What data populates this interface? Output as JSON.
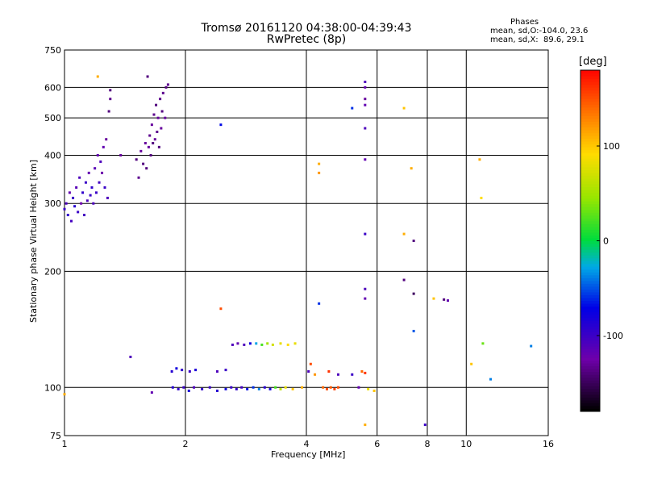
{
  "header": {
    "title_line1": "Tromsø 20161120 04:38:00-04:39:43",
    "title_line2": "RwPretec (8p)",
    "stats_title": "Phases",
    "stats_o": "mean, sd,O:-104.0, 23.6",
    "stats_x": "mean, sd,X:  89.6, 29.1"
  },
  "colorbar": {
    "label": "[deg]",
    "ticks": [
      "100",
      "0",
      "-100"
    ],
    "tick_values": [
      100,
      0,
      -100
    ],
    "range": [
      -180,
      180
    ]
  },
  "chart_data": {
    "type": "scatter",
    "xlabel": "Frequency [MHz]",
    "ylabel": "Stationary phase Virtual Height [km]",
    "xscale": "log",
    "yscale": "log",
    "xlim": [
      1,
      16
    ],
    "ylim": [
      75,
      750
    ],
    "xticks": [
      1,
      2,
      4,
      6,
      8,
      10,
      16
    ],
    "xtick_labels": [
      "1",
      "2",
      "4",
      "6",
      "8",
      "10",
      "16"
    ],
    "yticks": [
      75,
      100,
      200,
      300,
      400,
      500,
      600,
      750
    ],
    "ytick_labels": [
      "75",
      "100",
      "200",
      "300",
      "400",
      "500",
      "600",
      "750"
    ],
    "grid": true,
    "color_encoding": "phase [deg]",
    "points": [
      {
        "x": 1.0,
        "y": 290,
        "phase": -100
      },
      {
        "x": 1.01,
        "y": 300,
        "phase": -110
      },
      {
        "x": 1.02,
        "y": 280,
        "phase": -95
      },
      {
        "x": 1.03,
        "y": 320,
        "phase": -120
      },
      {
        "x": 1.04,
        "y": 270,
        "phase": -105
      },
      {
        "x": 1.05,
        "y": 310,
        "phase": -100
      },
      {
        "x": 1.06,
        "y": 295,
        "phase": -90
      },
      {
        "x": 1.07,
        "y": 330,
        "phase": -115
      },
      {
        "x": 1.08,
        "y": 285,
        "phase": -100
      },
      {
        "x": 1.09,
        "y": 350,
        "phase": -110
      },
      {
        "x": 1.1,
        "y": 300,
        "phase": -125
      },
      {
        "x": 1.11,
        "y": 320,
        "phase": -95
      },
      {
        "x": 1.12,
        "y": 280,
        "phase": -105
      },
      {
        "x": 1.13,
        "y": 340,
        "phase": -100
      },
      {
        "x": 1.14,
        "y": 305,
        "phase": -110
      },
      {
        "x": 1.15,
        "y": 360,
        "phase": -120
      },
      {
        "x": 1.16,
        "y": 315,
        "phase": -100
      },
      {
        "x": 1.17,
        "y": 330,
        "phase": -95
      },
      {
        "x": 1.18,
        "y": 300,
        "phase": -110
      },
      {
        "x": 1.19,
        "y": 370,
        "phase": -115
      },
      {
        "x": 1.2,
        "y": 320,
        "phase": -100
      },
      {
        "x": 1.21,
        "y": 400,
        "phase": -120
      },
      {
        "x": 1.22,
        "y": 340,
        "phase": -105
      },
      {
        "x": 1.23,
        "y": 385,
        "phase": -110
      },
      {
        "x": 1.24,
        "y": 360,
        "phase": -125
      },
      {
        "x": 1.25,
        "y": 420,
        "phase": -120
      },
      {
        "x": 1.26,
        "y": 330,
        "phase": -100
      },
      {
        "x": 1.27,
        "y": 440,
        "phase": -130
      },
      {
        "x": 1.28,
        "y": 310,
        "phase": -110
      },
      {
        "x": 1.29,
        "y": 520,
        "phase": -140
      },
      {
        "x": 1.3,
        "y": 560,
        "phase": -135
      },
      {
        "x": 1.3,
        "y": 590,
        "phase": -140
      },
      {
        "x": 1.21,
        "y": 640,
        "phase": 110
      },
      {
        "x": 1.38,
        "y": 400,
        "phase": -130
      },
      {
        "x": 1.51,
        "y": 390,
        "phase": -140
      },
      {
        "x": 1.53,
        "y": 350,
        "phase": -135
      },
      {
        "x": 1.55,
        "y": 410,
        "phase": -130
      },
      {
        "x": 1.57,
        "y": 380,
        "phase": -140
      },
      {
        "x": 1.59,
        "y": 430,
        "phase": -130
      },
      {
        "x": 1.6,
        "y": 370,
        "phase": -140
      },
      {
        "x": 1.61,
        "y": 640,
        "phase": -140
      },
      {
        "x": 1.62,
        "y": 420,
        "phase": -130
      },
      {
        "x": 1.63,
        "y": 450,
        "phase": -135
      },
      {
        "x": 1.64,
        "y": 400,
        "phase": -140
      },
      {
        "x": 1.65,
        "y": 480,
        "phase": -130
      },
      {
        "x": 1.66,
        "y": 430,
        "phase": -140
      },
      {
        "x": 1.67,
        "y": 510,
        "phase": -135
      },
      {
        "x": 1.68,
        "y": 440,
        "phase": -130
      },
      {
        "x": 1.69,
        "y": 540,
        "phase": -140
      },
      {
        "x": 1.7,
        "y": 460,
        "phase": -135
      },
      {
        "x": 1.71,
        "y": 500,
        "phase": -130
      },
      {
        "x": 1.72,
        "y": 420,
        "phase": -140
      },
      {
        "x": 1.73,
        "y": 560,
        "phase": -135
      },
      {
        "x": 1.74,
        "y": 470,
        "phase": -130
      },
      {
        "x": 1.75,
        "y": 520,
        "phase": -140
      },
      {
        "x": 1.76,
        "y": 580,
        "phase": -135
      },
      {
        "x": 1.78,
        "y": 500,
        "phase": -130
      },
      {
        "x": 1.79,
        "y": 600,
        "phase": -140
      },
      {
        "x": 1.81,
        "y": 610,
        "phase": -135
      },
      {
        "x": 1.46,
        "y": 120,
        "phase": -110
      },
      {
        "x": 1.65,
        "y": 97,
        "phase": -120
      },
      {
        "x": 1.85,
        "y": 110,
        "phase": -90
      },
      {
        "x": 1.9,
        "y": 112,
        "phase": -80
      },
      {
        "x": 1.96,
        "y": 111,
        "phase": -95
      },
      {
        "x": 2.05,
        "y": 110,
        "phase": -100
      },
      {
        "x": 2.12,
        "y": 111,
        "phase": -85
      },
      {
        "x": 1.86,
        "y": 100,
        "phase": -90
      },
      {
        "x": 1.92,
        "y": 99,
        "phase": -95
      },
      {
        "x": 1.98,
        "y": 100,
        "phase": -100
      },
      {
        "x": 2.04,
        "y": 98,
        "phase": -85
      },
      {
        "x": 2.1,
        "y": 100,
        "phase": -110
      },
      {
        "x": 2.2,
        "y": 99,
        "phase": -95
      },
      {
        "x": 2.3,
        "y": 100,
        "phase": -100
      },
      {
        "x": 2.4,
        "y": 98,
        "phase": -90
      },
      {
        "x": 2.52,
        "y": 99,
        "phase": -80
      },
      {
        "x": 2.6,
        "y": 100,
        "phase": -100
      },
      {
        "x": 2.68,
        "y": 99,
        "phase": -95
      },
      {
        "x": 2.76,
        "y": 100,
        "phase": -105
      },
      {
        "x": 2.85,
        "y": 99,
        "phase": -70
      },
      {
        "x": 2.95,
        "y": 100,
        "phase": -60
      },
      {
        "x": 3.05,
        "y": 99,
        "phase": -40
      },
      {
        "x": 3.15,
        "y": 100,
        "phase": -90
      },
      {
        "x": 3.25,
        "y": 99,
        "phase": -80
      },
      {
        "x": 3.35,
        "y": 100,
        "phase": 20
      },
      {
        "x": 3.45,
        "y": 99,
        "phase": 60
      },
      {
        "x": 3.55,
        "y": 100,
        "phase": 80
      },
      {
        "x": 3.7,
        "y": 99,
        "phase": 100
      },
      {
        "x": 3.9,
        "y": 100,
        "phase": 110
      },
      {
        "x": 2.4,
        "y": 110,
        "phase": -110
      },
      {
        "x": 2.52,
        "y": 111,
        "phase": -100
      },
      {
        "x": 2.62,
        "y": 129,
        "phase": -110
      },
      {
        "x": 2.7,
        "y": 130,
        "phase": -120
      },
      {
        "x": 2.8,
        "y": 129,
        "phase": -110
      },
      {
        "x": 2.9,
        "y": 130,
        "phase": -80
      },
      {
        "x": 3.0,
        "y": 130,
        "phase": -30
      },
      {
        "x": 3.1,
        "y": 129,
        "phase": 20
      },
      {
        "x": 3.2,
        "y": 130,
        "phase": 50
      },
      {
        "x": 3.3,
        "y": 129,
        "phase": 70
      },
      {
        "x": 3.45,
        "y": 130,
        "phase": 80
      },
      {
        "x": 3.6,
        "y": 129,
        "phase": 90
      },
      {
        "x": 3.75,
        "y": 130,
        "phase": 80
      },
      {
        "x": 4.05,
        "y": 110,
        "phase": -110
      },
      {
        "x": 4.1,
        "y": 115,
        "phase": 150
      },
      {
        "x": 4.2,
        "y": 108,
        "phase": 120
      },
      {
        "x": 4.4,
        "y": 100,
        "phase": 140
      },
      {
        "x": 4.5,
        "y": 99,
        "phase": 150
      },
      {
        "x": 4.6,
        "y": 100,
        "phase": 145
      },
      {
        "x": 4.7,
        "y": 99,
        "phase": 155
      },
      {
        "x": 4.8,
        "y": 100,
        "phase": 150
      },
      {
        "x": 4.55,
        "y": 110,
        "phase": 160
      },
      {
        "x": 4.8,
        "y": 108,
        "phase": -110
      },
      {
        "x": 5.2,
        "y": 108,
        "phase": -100
      },
      {
        "x": 5.5,
        "y": 110,
        "phase": 140
      },
      {
        "x": 5.6,
        "y": 109,
        "phase": 160
      },
      {
        "x": 5.4,
        "y": 100,
        "phase": -120
      },
      {
        "x": 5.7,
        "y": 99,
        "phase": 80
      },
      {
        "x": 5.9,
        "y": 98,
        "phase": 100
      },
      {
        "x": 4.3,
        "y": 165,
        "phase": -60
      },
      {
        "x": 4.3,
        "y": 380,
        "phase": 110
      },
      {
        "x": 4.3,
        "y": 360,
        "phase": 120
      },
      {
        "x": 2.45,
        "y": 160,
        "phase": 150
      },
      {
        "x": 2.45,
        "y": 480,
        "phase": -70
      },
      {
        "x": 5.2,
        "y": 530,
        "phase": -60
      },
      {
        "x": 5.6,
        "y": 620,
        "phase": -110
      },
      {
        "x": 5.6,
        "y": 600,
        "phase": -120
      },
      {
        "x": 5.6,
        "y": 560,
        "phase": -130
      },
      {
        "x": 5.6,
        "y": 540,
        "phase": -120
      },
      {
        "x": 5.6,
        "y": 470,
        "phase": -110
      },
      {
        "x": 5.6,
        "y": 390,
        "phase": -120
      },
      {
        "x": 5.6,
        "y": 250,
        "phase": -100
      },
      {
        "x": 5.6,
        "y": 180,
        "phase": -110
      },
      {
        "x": 5.6,
        "y": 170,
        "phase": -120
      },
      {
        "x": 5.6,
        "y": 80,
        "phase": 110
      },
      {
        "x": 7.0,
        "y": 530,
        "phase": 100
      },
      {
        "x": 7.0,
        "y": 250,
        "phase": 110
      },
      {
        "x": 7.0,
        "y": 190,
        "phase": -140
      },
      {
        "x": 7.3,
        "y": 370,
        "phase": 110
      },
      {
        "x": 7.4,
        "y": 240,
        "phase": -140
      },
      {
        "x": 7.4,
        "y": 175,
        "phase": -150
      },
      {
        "x": 7.4,
        "y": 140,
        "phase": -50
      },
      {
        "x": 7.9,
        "y": 80,
        "phase": -100
      },
      {
        "x": 8.3,
        "y": 170,
        "phase": 100
      },
      {
        "x": 8.8,
        "y": 169,
        "phase": -140
      },
      {
        "x": 9.0,
        "y": 168,
        "phase": -120
      },
      {
        "x": 10.3,
        "y": 115,
        "phase": 100
      },
      {
        "x": 10.8,
        "y": 390,
        "phase": 110
      },
      {
        "x": 10.9,
        "y": 310,
        "phase": 90
      },
      {
        "x": 11.0,
        "y": 130,
        "phase": 30
      },
      {
        "x": 11.5,
        "y": 105,
        "phase": -40
      },
      {
        "x": 14.5,
        "y": 128,
        "phase": -40
      },
      {
        "x": 1.0,
        "y": 96,
        "phase": 110
      }
    ]
  }
}
